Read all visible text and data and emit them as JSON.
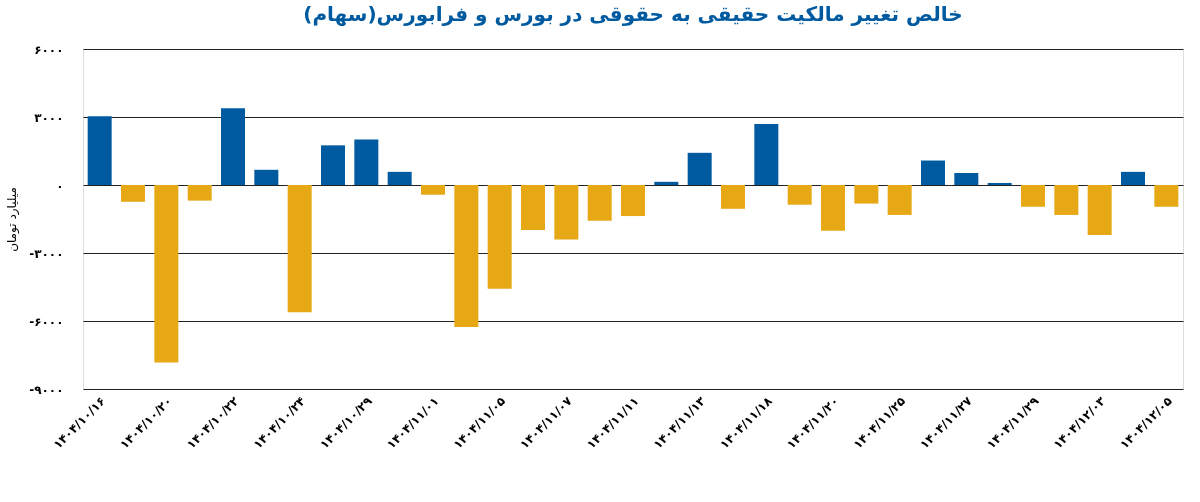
{
  "chart_data": {
    "type": "bar",
    "title": "خالص تغییر مالکیت حقیقی به حقوقی در بورس و فرابورس(سهام)",
    "ylabel": "میلیارد تومان",
    "categories": [
      "۱۴۰۴/۱۰/۱۶",
      null,
      "۱۴۰۴/۱۰/۲۰",
      null,
      "۱۴۰۴/۱۰/۲۲",
      null,
      "۱۴۰۴/۱۰/۲۴",
      null,
      "۱۴۰۴/۱۰/۲۹",
      null,
      "۱۴۰۴/۱۱/۰۱",
      null,
      "۱۴۰۴/۱۱/۰۵",
      null,
      "۱۴۰۴/۱۱/۰۷",
      null,
      "۱۴۰۴/۱۱/۱۱",
      null,
      "۱۴۰۴/۱۱/۱۳",
      null,
      "۱۴۰۴/۱۱/۱۸",
      null,
      "۱۴۰۴/۱۱/۲۰",
      null,
      "۱۴۰۴/۱۱/۲۵",
      null,
      "۱۴۰۴/۱۱/۲۷",
      null,
      "۱۴۰۴/۱۱/۲۹",
      null,
      "۱۴۰۴/۱۲/۰۳",
      null,
      "۱۴۰۴/۱۲/۰۵"
    ],
    "values": [
      3030,
      -740,
      -7830,
      -690,
      3390,
      670,
      -5610,
      1750,
      2010,
      580,
      -430,
      -6270,
      -4580,
      -1990,
      -2400,
      -1580,
      -1370,
      140,
      1420,
      -1050,
      2690,
      -870,
      -2020,
      -820,
      -1320,
      1080,
      530,
      90,
      -960,
      -1320,
      -2210,
      580,
      -960
    ],
    "colors": [
      "#005aa0",
      "#e6a814",
      "#e6a814",
      "#e6a814",
      "#005aa0",
      "#005aa0",
      "#e6a814",
      "#005aa0",
      "#005aa0",
      "#005aa0",
      "#e6a814",
      "#e6a814",
      "#e6a814",
      "#e6a814",
      "#e6a814",
      "#e6a814",
      "#e6a814",
      "#005aa0",
      "#005aa0",
      "#e6a814",
      "#005aa0",
      "#e6a814",
      "#e6a814",
      "#e6a814",
      "#e6a814",
      "#005aa0",
      "#005aa0",
      "#005aa0",
      "#e6a814",
      "#e6a814",
      "#e6a814",
      "#005aa0",
      "#e6a814"
    ],
    "ylim": [
      -9000,
      6000
    ],
    "yticks": [
      {
        "value": 6000,
        "label": "۶۰۰۰"
      },
      {
        "value": 3000,
        "label": "۳۰۰۰"
      },
      {
        "value": 0,
        "label": "۰"
      },
      {
        "value": -3000,
        "label": "-۳۰۰۰"
      },
      {
        "value": -6000,
        "label": "-۶۰۰۰"
      },
      {
        "value": -9000,
        "label": "-۹۰۰۰"
      }
    ],
    "grid": "y"
  }
}
